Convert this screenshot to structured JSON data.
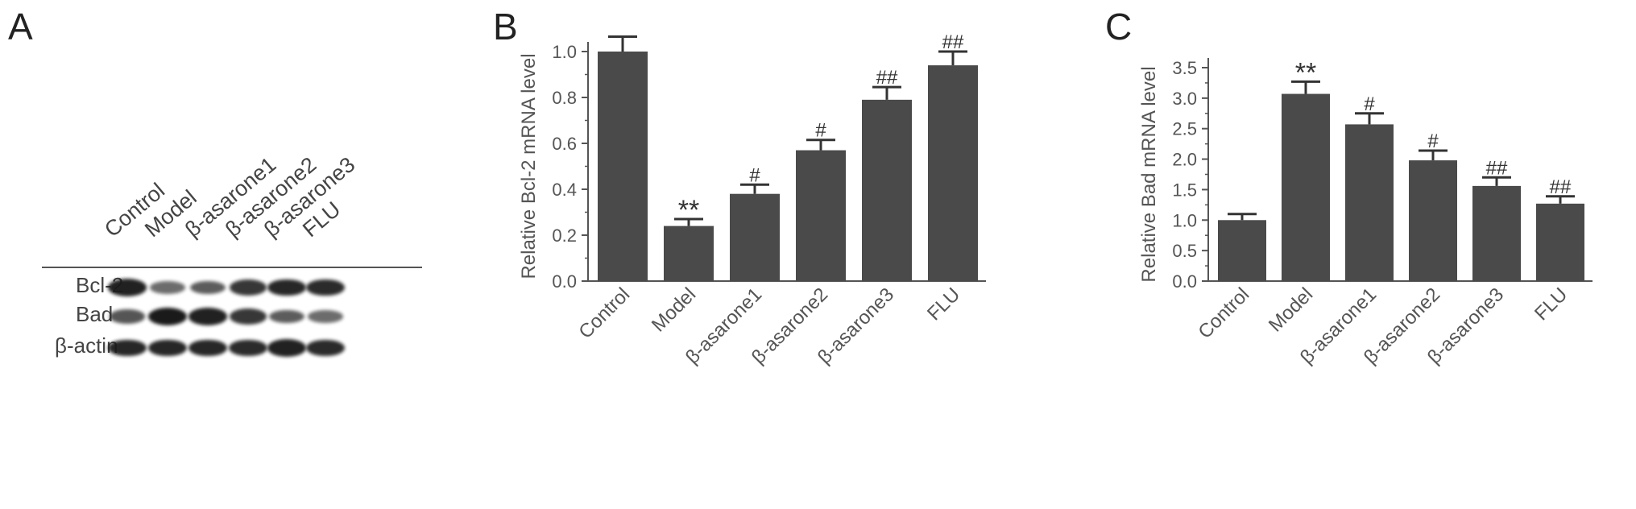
{
  "panels": {
    "A": {
      "label": "A",
      "lanes": [
        "Control",
        "Model",
        "β-asarone1",
        "β-asarone2",
        "β-asarone3",
        "FLU"
      ],
      "rows": [
        {
          "name": "Bcl-2",
          "intensity": [
            0.95,
            0.45,
            0.55,
            0.8,
            0.9,
            0.88
          ]
        },
        {
          "name": "Bad",
          "intensity": [
            0.6,
            1.0,
            0.95,
            0.8,
            0.55,
            0.45
          ]
        },
        {
          "name": "β-actin",
          "intensity": [
            0.9,
            0.9,
            0.9,
            0.88,
            0.95,
            0.88
          ]
        }
      ],
      "band_color": "#1a1a1a"
    },
    "B": {
      "label": "B"
    },
    "C": {
      "label": "C"
    }
  },
  "chart_data": [
    {
      "type": "bar",
      "panel": "B",
      "categories": [
        "Control",
        "Model",
        "β-asarone1",
        "β-asarone2",
        "β-asarone3",
        "FLU"
      ],
      "values": [
        1.0,
        0.24,
        0.38,
        0.57,
        0.79,
        0.94
      ],
      "errors": [
        0.065,
        0.03,
        0.04,
        0.045,
        0.055,
        0.06
      ],
      "annotations": [
        "",
        "**",
        "#",
        "#",
        "##",
        "##"
      ],
      "xlabel": "",
      "ylabel": "Relative Bcl-2 mRNA level",
      "ylim": [
        0,
        1.0
      ],
      "yticks": [
        "0.0",
        "0.2",
        "0.4",
        "0.6",
        "0.8",
        "1.0"
      ],
      "bar_color": "#4a4a4a"
    },
    {
      "type": "bar",
      "panel": "C",
      "categories": [
        "Control",
        "Model",
        "β-asarone1",
        "β-asarone2",
        "β-asarone3",
        "FLU"
      ],
      "values": [
        1.0,
        3.07,
        2.57,
        1.98,
        1.56,
        1.27
      ],
      "errors": [
        0.1,
        0.2,
        0.18,
        0.16,
        0.14,
        0.12
      ],
      "annotations": [
        "",
        "**",
        "#",
        "#",
        "##",
        "##"
      ],
      "xlabel": "",
      "ylabel": "Relative Bad mRNA level",
      "ylim": [
        0,
        3.5
      ],
      "yticks": [
        "0.0",
        "0.5",
        "1.0",
        "1.5",
        "2.0",
        "2.5",
        "3.0",
        "3.5"
      ],
      "bar_color": "#4a4a4a"
    }
  ]
}
